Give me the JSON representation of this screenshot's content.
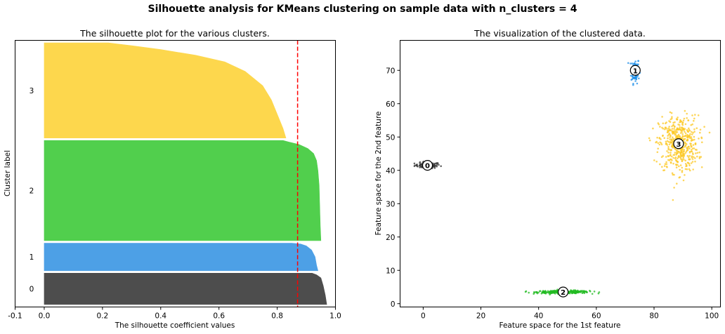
{
  "suptitle": "Silhouette analysis for KMeans clustering on sample data with n_clusters = 4",
  "chart_data": [
    {
      "type": "area",
      "title": "The silhouette plot for the various clusters.",
      "xlabel": "The silhouette coefficient values",
      "ylabel": "Cluster label",
      "xlim": [
        -0.1,
        1.0
      ],
      "xticks": [
        -0.1,
        0.0,
        0.2,
        0.4,
        0.6,
        0.8,
        1.0
      ],
      "xtick_labels": [
        "-0.1",
        "0.0",
        "0.2",
        "0.4",
        "0.6",
        "0.8",
        "1.0"
      ],
      "average_silhouette_score": 0.87,
      "average_line_color": "#ff0000",
      "clusters": [
        {
          "label": "0",
          "color": "#4a4a4a",
          "size": 125,
          "profile": [
            [
              0.0,
              0.97
            ],
            [
              0.3,
              0.965
            ],
            [
              0.6,
              0.958
            ],
            [
              0.85,
              0.95
            ],
            [
              0.95,
              0.935
            ],
            [
              1.0,
              0.92
            ]
          ]
        },
        {
          "label": "1",
          "color": "#4a9fe6",
          "size": 110,
          "profile": [
            [
              0.0,
              0.94
            ],
            [
              0.2,
              0.935
            ],
            [
              0.5,
              0.93
            ],
            [
              0.75,
              0.918
            ],
            [
              0.9,
              0.9
            ],
            [
              0.97,
              0.88
            ],
            [
              1.0,
              0.85
            ]
          ]
        },
        {
          "label": "2",
          "color": "#4ecf4a",
          "size": 400,
          "profile": [
            [
              0.0,
              0.95
            ],
            [
              0.15,
              0.948
            ],
            [
              0.35,
              0.946
            ],
            [
              0.55,
              0.944
            ],
            [
              0.7,
              0.94
            ],
            [
              0.8,
              0.935
            ],
            [
              0.87,
              0.925
            ],
            [
              0.92,
              0.905
            ],
            [
              0.96,
              0.875
            ],
            [
              0.985,
              0.84
            ],
            [
              1.0,
              0.82
            ]
          ]
        },
        {
          "label": "3",
          "color": "#fdd74a",
          "size": 380,
          "profile": [
            [
              0.0,
              0.83
            ],
            [
              0.1,
              0.82
            ],
            [
              0.25,
              0.8
            ],
            [
              0.4,
              0.78
            ],
            [
              0.55,
              0.75
            ],
            [
              0.7,
              0.69
            ],
            [
              0.8,
              0.62
            ],
            [
              0.87,
              0.52
            ],
            [
              0.93,
              0.4
            ],
            [
              0.97,
              0.3
            ],
            [
              1.0,
              0.22
            ]
          ]
        }
      ]
    },
    {
      "type": "scatter",
      "title": "The visualization of the clustered data.",
      "xlabel": "Feature space for the 1st feature",
      "ylabel": "Feature space for the 2nd feature",
      "xlim": [
        -8,
        103
      ],
      "ylim": [
        -1,
        79
      ],
      "xticks": [
        0,
        20,
        40,
        60,
        80,
        100
      ],
      "yticks": [
        0,
        10,
        20,
        30,
        40,
        50,
        60,
        70
      ],
      "clusters": [
        {
          "label": "0",
          "color": "#333333",
          "center": [
            1.5,
            41.5
          ],
          "n": 100,
          "spread": [
            2.2,
            0.45
          ]
        },
        {
          "label": "1",
          "color": "#1f8fe8",
          "center": [
            73.5,
            70.0
          ],
          "n": 90,
          "spread": [
            0.7,
            1.9
          ]
        },
        {
          "label": "2",
          "color": "#22bb22",
          "center": [
            48.5,
            3.5
          ],
          "n": 320,
          "spread": [
            4.5,
            0.22
          ]
        },
        {
          "label": "3",
          "color": "#fcc824",
          "center": [
            88.5,
            48.0
          ],
          "n": 500,
          "spread": [
            3.4,
            4.2
          ]
        }
      ],
      "center_marker": {
        "fill": "#ffffff",
        "edge": "#000000"
      }
    }
  ]
}
